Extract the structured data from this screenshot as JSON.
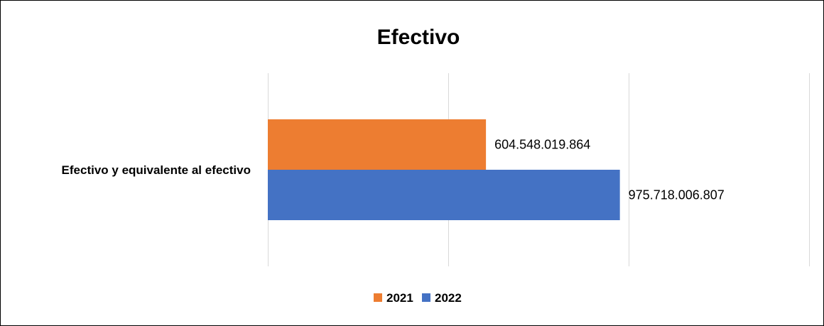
{
  "chart_data": {
    "type": "bar",
    "orientation": "horizontal",
    "title": "Efectivo",
    "categories": [
      "Efectivo y equivalente al efectivo"
    ],
    "series": [
      {
        "name": "2021",
        "values": [
          604548019864
        ],
        "value_labels": [
          "604.548.019.864"
        ],
        "color": "#ED7D31"
      },
      {
        "name": "2022",
        "values": [
          975718006807
        ],
        "value_labels": [
          "975.718.006.807"
        ],
        "color": "#4472C4"
      }
    ],
    "xlim": [
      0,
      1500000000000
    ],
    "xgrid_step": 500000000000,
    "grid": true,
    "legend": "bottom",
    "xlabel": "",
    "ylabel": ""
  }
}
